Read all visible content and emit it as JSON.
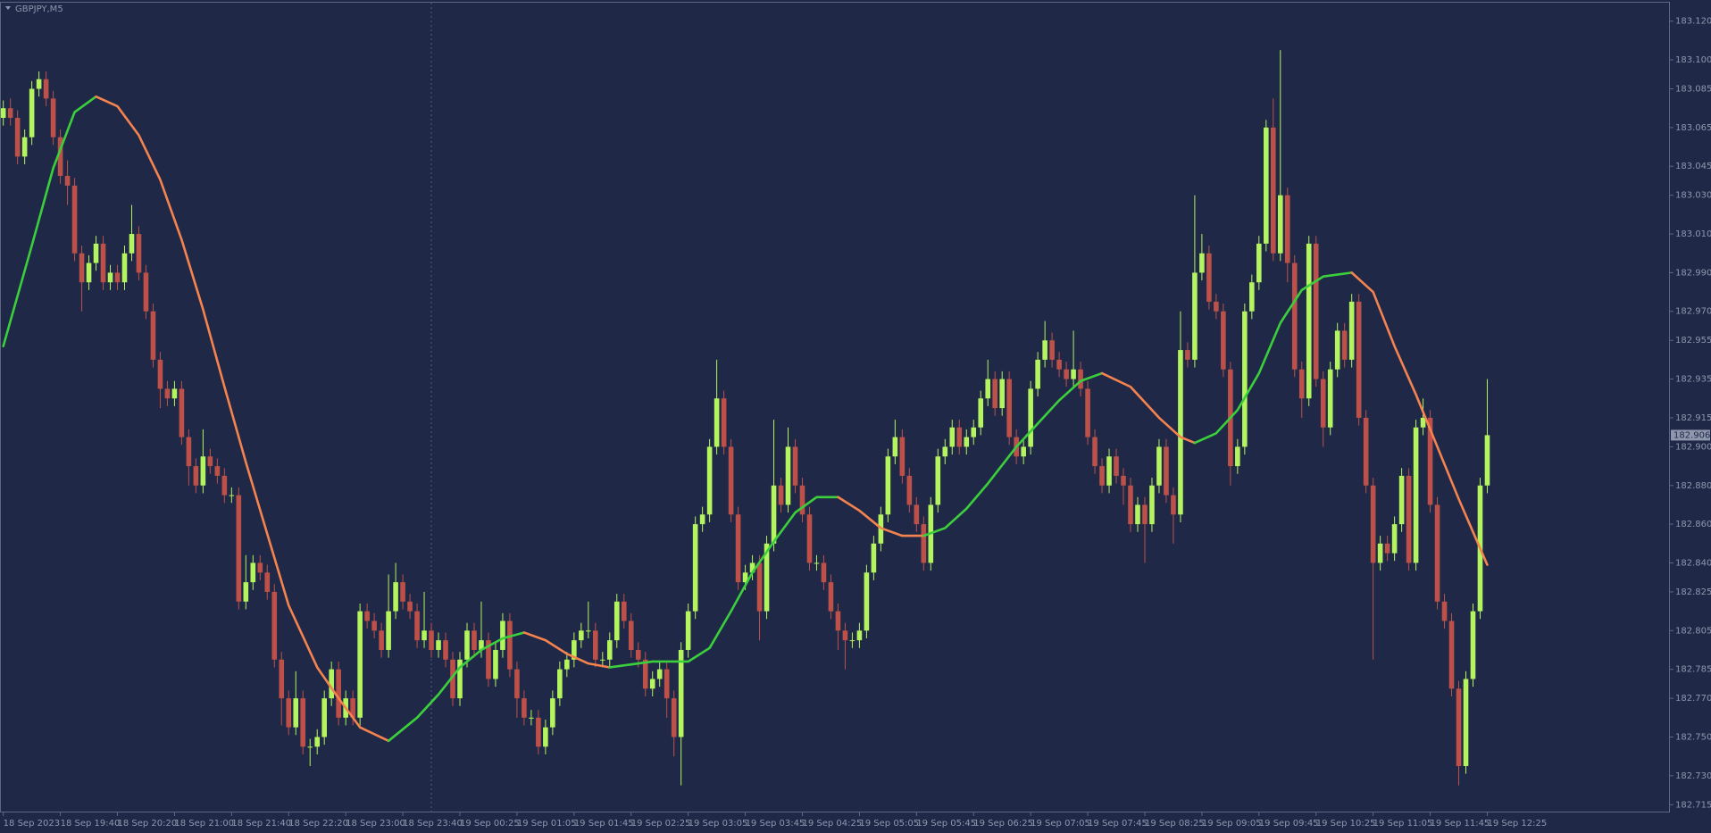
{
  "chart_data": {
    "type": "candlestick",
    "title": "GBPJPY,M5",
    "categories": [
      "18 Sep 2023",
      null,
      null,
      null,
      null,
      null,
      null,
      null,
      "18 Sep 19:40",
      null,
      null,
      null,
      null,
      null,
      null,
      null,
      "18 Sep 20:20",
      null,
      null,
      null,
      null,
      null,
      null,
      null,
      "18 Sep 21:00",
      null,
      null,
      null,
      null,
      null,
      null,
      null,
      "18 Sep 21:40",
      null,
      null,
      null,
      null,
      null,
      null,
      null,
      "18 Sep 22:20",
      null,
      null,
      null,
      null,
      null,
      null,
      null,
      "18 Sep 23:00",
      null,
      null,
      null,
      null,
      null,
      null,
      null,
      "18 Sep 23:40",
      null,
      null,
      null,
      null,
      null,
      null,
      null,
      "19 Sep 00:25",
      null,
      null,
      null,
      null,
      null,
      null,
      null,
      "19 Sep 01:05",
      null,
      null,
      null,
      null,
      null,
      null,
      null,
      "19 Sep 01:45",
      null,
      null,
      null,
      null,
      null,
      null,
      null,
      "19 Sep 02:25",
      null,
      null,
      null,
      null,
      null,
      null,
      null,
      "19 Sep 03:05",
      null,
      null,
      null,
      null,
      null,
      null,
      null,
      "19 Sep 03:45",
      null,
      null,
      null,
      null,
      null,
      null,
      null,
      "19 Sep 04:25",
      null,
      null,
      null,
      null,
      null,
      null,
      null,
      "19 Sep 05:05",
      null,
      null,
      null,
      null,
      null,
      null,
      null,
      "19 Sep 05:45",
      null,
      null,
      null,
      null,
      null,
      null,
      null,
      "19 Sep 06:25",
      null,
      null,
      null,
      null,
      null,
      null,
      null,
      "19 Sep 07:05",
      null,
      null,
      null,
      null,
      null,
      null,
      null,
      "19 Sep 07:45",
      null,
      null,
      null,
      null,
      null,
      null,
      null,
      "19 Sep 08:25",
      null,
      null,
      null,
      null,
      null,
      null,
      null,
      "19 Sep 09:05",
      null,
      null,
      null,
      null,
      null,
      null,
      null,
      "19 Sep 09:45",
      null,
      null,
      null,
      null,
      null,
      null,
      null,
      "19 Sep 10:25",
      null,
      null,
      null,
      null,
      null,
      null,
      null,
      "19 Sep 11:05",
      null,
      null,
      null,
      null,
      null,
      null,
      null,
      "19 Sep 11:45",
      null,
      null,
      null,
      null,
      null,
      null,
      null,
      "19 Sep 12:25"
    ],
    "open": [
      183.07,
      183.075,
      183.07,
      183.05,
      183.06,
      183.085,
      183.09,
      183.08,
      183.06,
      183.04,
      183.035,
      183.0,
      182.985,
      182.995,
      183.005,
      182.985,
      182.99,
      182.985,
      183.0,
      183.01,
      182.99,
      182.97,
      182.945,
      182.93,
      182.925,
      182.93,
      182.905,
      182.89,
      182.88,
      182.895,
      182.89,
      182.885,
      182.875,
      182.875,
      182.82,
      182.83,
      182.84,
      182.835,
      182.825,
      182.79,
      182.77,
      182.755,
      182.77,
      182.745,
      182.745,
      182.75,
      182.77,
      182.785,
      182.76,
      182.77,
      182.76,
      182.815,
      182.81,
      182.805,
      182.795,
      182.815,
      182.83,
      182.82,
      182.815,
      182.8,
      182.805,
      182.795,
      182.8,
      182.79,
      182.77,
      182.79,
      182.805,
      182.795,
      182.8,
      182.78,
      182.795,
      182.81,
      182.785,
      182.77,
      182.76,
      182.76,
      182.745,
      182.755,
      182.77,
      182.785,
      182.79,
      182.8,
      182.805,
      182.805,
      182.79,
      182.79,
      182.8,
      182.82,
      182.81,
      182.795,
      182.79,
      182.775,
      182.78,
      182.785,
      182.77,
      182.75,
      182.795,
      182.815,
      182.86,
      182.865,
      182.9,
      182.925,
      182.9,
      182.865,
      182.83,
      182.835,
      182.84,
      182.815,
      182.85,
      182.88,
      182.87,
      182.9,
      182.88,
      182.865,
      182.84,
      182.84,
      182.83,
      182.815,
      182.805,
      182.8,
      182.8,
      182.805,
      182.835,
      182.85,
      182.865,
      182.895,
      182.905,
      182.885,
      182.87,
      182.86,
      182.84,
      182.87,
      182.895,
      182.9,
      182.91,
      182.9,
      182.905,
      182.91,
      182.925,
      182.935,
      182.92,
      182.935,
      182.905,
      182.895,
      182.9,
      182.93,
      182.945,
      182.955,
      182.945,
      182.94,
      182.935,
      182.94,
      182.93,
      182.905,
      182.89,
      182.88,
      182.895,
      182.885,
      182.88,
      182.86,
      182.87,
      182.86,
      182.88,
      182.9,
      182.875,
      182.865,
      182.95,
      182.945,
      182.99,
      183.0,
      182.975,
      182.97,
      182.94,
      182.89,
      182.9,
      182.97,
      182.985,
      183.005,
      183.065,
      183.0,
      183.03,
      182.995,
      182.94,
      182.925,
      183.005,
      182.935,
      182.91,
      182.94,
      182.96,
      182.945,
      182.975,
      182.915,
      182.88,
      182.84,
      182.85,
      182.845,
      182.86,
      182.885,
      182.84,
      182.91,
      182.915,
      182.87,
      182.82,
      182.81,
      182.775,
      182.735,
      182.78,
      182.815,
      182.88
    ],
    "high": [
      183.079,
      183.08,
      183.074,
      183.064,
      183.089,
      183.094,
      183.094,
      183.084,
      183.064,
      183.048,
      183.039,
      183.004,
      182.999,
      183.009,
      183.009,
      182.994,
      182.994,
      183.004,
      183.025,
      183.014,
      182.994,
      182.974,
      182.949,
      182.934,
      182.934,
      182.934,
      182.909,
      182.894,
      182.909,
      182.899,
      182.894,
      182.889,
      182.879,
      182.879,
      182.844,
      182.844,
      182.844,
      182.839,
      182.829,
      182.794,
      182.774,
      182.784,
      182.774,
      182.749,
      182.754,
      182.774,
      182.789,
      182.789,
      182.774,
      182.774,
      182.819,
      182.819,
      182.814,
      182.809,
      182.834,
      182.84,
      182.834,
      182.824,
      182.819,
      182.825,
      182.809,
      182.804,
      182.804,
      182.794,
      182.794,
      182.809,
      182.809,
      182.82,
      182.804,
      182.799,
      182.814,
      182.814,
      182.789,
      182.774,
      182.764,
      182.764,
      182.759,
      182.774,
      182.789,
      182.794,
      182.804,
      182.809,
      182.82,
      182.809,
      182.794,
      182.804,
      182.824,
      182.824,
      182.814,
      182.799,
      182.794,
      182.784,
      182.789,
      182.789,
      182.774,
      182.799,
      182.819,
      182.864,
      182.869,
      182.904,
      182.945,
      182.929,
      182.904,
      182.869,
      182.839,
      182.844,
      182.844,
      182.854,
      182.914,
      182.884,
      182.91,
      182.904,
      182.884,
      182.869,
      182.844,
      182.844,
      182.834,
      182.819,
      182.809,
      182.804,
      182.809,
      182.839,
      182.854,
      182.869,
      182.899,
      182.914,
      182.909,
      182.889,
      182.874,
      182.864,
      182.874,
      182.899,
      182.904,
      182.914,
      182.914,
      182.909,
      182.914,
      182.929,
      182.945,
      182.939,
      182.939,
      182.939,
      182.909,
      182.904,
      182.934,
      182.949,
      182.965,
      182.959,
      182.949,
      182.944,
      182.96,
      182.944,
      182.934,
      182.909,
      182.894,
      182.899,
      182.899,
      182.889,
      182.884,
      182.874,
      182.874,
      182.884,
      182.904,
      182.904,
      182.879,
      182.97,
      182.954,
      183.03,
      183.01,
      183.004,
      182.979,
      182.974,
      182.944,
      182.904,
      182.974,
      182.989,
      183.009,
      183.069,
      183.08,
      183.105,
      183.034,
      182.999,
      182.944,
      183.009,
      183.009,
      182.939,
      182.944,
      182.964,
      182.964,
      182.979,
      182.979,
      182.919,
      182.884,
      182.854,
      182.854,
      182.864,
      182.889,
      182.889,
      182.914,
      182.925,
      182.919,
      182.874,
      182.824,
      182.814,
      182.779,
      182.784,
      182.819,
      182.884,
      182.935
    ],
    "low": [
      183.066,
      183.066,
      183.046,
      183.046,
      183.056,
      183.081,
      183.076,
      183.056,
      183.036,
      183.025,
      182.996,
      182.97,
      182.981,
      182.991,
      182.981,
      182.981,
      182.981,
      182.981,
      182.996,
      182.986,
      182.966,
      182.941,
      182.92,
      182.921,
      182.921,
      182.901,
      182.88,
      182.876,
      182.876,
      182.886,
      182.881,
      182.871,
      182.871,
      182.816,
      182.816,
      182.826,
      182.831,
      182.821,
      182.786,
      182.756,
      182.751,
      182.751,
      182.741,
      182.735,
      182.741,
      182.746,
      182.766,
      182.756,
      182.756,
      182.756,
      182.756,
      182.806,
      182.801,
      182.791,
      182.791,
      182.811,
      182.816,
      182.811,
      182.796,
      182.796,
      182.791,
      182.791,
      182.786,
      182.766,
      182.766,
      182.786,
      182.791,
      182.791,
      182.776,
      182.776,
      182.791,
      182.781,
      182.76,
      182.756,
      182.756,
      182.741,
      182.741,
      182.751,
      182.766,
      182.781,
      182.786,
      182.796,
      182.801,
      182.786,
      182.786,
      182.786,
      182.796,
      182.806,
      182.791,
      182.786,
      182.771,
      182.771,
      182.776,
      182.76,
      182.74,
      182.725,
      182.791,
      182.811,
      182.856,
      182.861,
      182.896,
      182.896,
      182.861,
      182.826,
      182.826,
      182.831,
      182.8,
      182.811,
      182.846,
      182.866,
      182.866,
      182.876,
      182.861,
      182.836,
      182.836,
      182.826,
      182.811,
      182.795,
      182.785,
      182.796,
      182.796,
      182.801,
      182.831,
      182.846,
      182.861,
      182.891,
      182.881,
      182.866,
      182.856,
      182.836,
      182.836,
      182.866,
      182.891,
      182.896,
      182.896,
      182.896,
      182.901,
      182.906,
      182.921,
      182.916,
      182.916,
      182.901,
      182.891,
      182.891,
      182.896,
      182.926,
      182.941,
      182.941,
      182.936,
      182.931,
      182.931,
      182.926,
      182.901,
      182.886,
      182.876,
      182.876,
      182.881,
      182.87,
      182.856,
      182.856,
      182.84,
      182.856,
      182.876,
      182.871,
      182.85,
      182.861,
      182.941,
      182.941,
      182.986,
      182.971,
      182.966,
      182.936,
      182.88,
      182.886,
      182.896,
      182.966,
      182.981,
      183.001,
      182.996,
      182.996,
      182.985,
      182.936,
      182.915,
      182.921,
      182.931,
      182.9,
      182.906,
      182.936,
      182.941,
      182.941,
      182.911,
      182.876,
      182.79,
      182.836,
      182.841,
      182.841,
      182.856,
      182.836,
      182.836,
      182.906,
      182.866,
      182.816,
      182.806,
      182.771,
      182.725,
      182.731,
      182.776,
      182.811,
      182.876
    ],
    "close": [
      183.075,
      183.07,
      183.05,
      183.06,
      183.085,
      183.09,
      183.08,
      183.06,
      183.04,
      183.035,
      183.0,
      182.985,
      182.995,
      183.005,
      182.985,
      182.99,
      182.985,
      183.0,
      183.01,
      182.99,
      182.97,
      182.945,
      182.93,
      182.925,
      182.93,
      182.905,
      182.89,
      182.88,
      182.895,
      182.89,
      182.885,
      182.875,
      182.875,
      182.82,
      182.83,
      182.84,
      182.835,
      182.825,
      182.79,
      182.77,
      182.755,
      182.77,
      182.745,
      182.745,
      182.75,
      182.77,
      182.785,
      182.76,
      182.77,
      182.76,
      182.815,
      182.81,
      182.805,
      182.795,
      182.815,
      182.83,
      182.82,
      182.815,
      182.8,
      182.805,
      182.795,
      182.8,
      182.79,
      182.77,
      182.79,
      182.805,
      182.795,
      182.8,
      182.78,
      182.795,
      182.81,
      182.785,
      182.77,
      182.76,
      182.76,
      182.745,
      182.755,
      182.77,
      182.785,
      182.79,
      182.8,
      182.805,
      182.805,
      182.79,
      182.79,
      182.8,
      182.82,
      182.81,
      182.795,
      182.79,
      182.775,
      182.78,
      182.785,
      182.77,
      182.75,
      182.795,
      182.815,
      182.86,
      182.865,
      182.9,
      182.925,
      182.9,
      182.865,
      182.83,
      182.835,
      182.84,
      182.815,
      182.85,
      182.88,
      182.87,
      182.9,
      182.88,
      182.865,
      182.84,
      182.84,
      182.83,
      182.815,
      182.805,
      182.8,
      182.8,
      182.805,
      182.835,
      182.85,
      182.865,
      182.895,
      182.905,
      182.885,
      182.87,
      182.86,
      182.84,
      182.87,
      182.895,
      182.9,
      182.91,
      182.9,
      182.905,
      182.91,
      182.925,
      182.935,
      182.92,
      182.935,
      182.905,
      182.895,
      182.9,
      182.93,
      182.945,
      182.955,
      182.945,
      182.94,
      182.935,
      182.94,
      182.93,
      182.905,
      182.89,
      182.88,
      182.895,
      182.885,
      182.88,
      182.86,
      182.87,
      182.86,
      182.88,
      182.9,
      182.875,
      182.865,
      182.95,
      182.945,
      182.99,
      183.0,
      182.975,
      182.97,
      182.94,
      182.89,
      182.9,
      182.97,
      182.985,
      183.005,
      183.065,
      183.0,
      183.03,
      182.995,
      182.94,
      182.925,
      183.005,
      182.935,
      182.91,
      182.94,
      182.96,
      182.945,
      182.975,
      182.915,
      182.88,
      182.84,
      182.85,
      182.845,
      182.86,
      182.885,
      182.84,
      182.91,
      182.915,
      182.87,
      182.82,
      182.81,
      182.775,
      182.735,
      182.78,
      182.815,
      182.88,
      182.906
    ],
    "up_color": "#b3f45f",
    "down_color": "#bd5149",
    "moving_average": {
      "x": [
        0,
        4,
        7,
        10,
        13,
        16,
        19,
        22,
        25,
        28,
        31,
        34,
        37,
        40,
        44,
        47,
        50,
        54,
        58,
        61,
        64,
        67,
        70,
        73,
        76,
        79,
        82,
        85,
        91,
        96,
        99,
        102,
        105,
        108,
        111,
        114,
        117,
        120,
        123,
        126,
        129,
        132,
        135,
        138,
        142,
        145,
        148,
        151,
        154,
        158,
        162,
        165,
        167,
        170,
        173,
        176,
        179,
        182,
        185,
        189,
        192,
        195,
        198,
        201,
        204,
        208
      ],
      "values": [
        182.952,
        183.004,
        183.044,
        183.073,
        183.081,
        183.076,
        183.061,
        183.038,
        183.007,
        182.971,
        182.931,
        182.892,
        182.855,
        182.818,
        182.786,
        182.77,
        182.755,
        182.748,
        182.76,
        182.772,
        182.786,
        182.795,
        182.801,
        182.804,
        182.8,
        182.793,
        182.788,
        182.786,
        182.789,
        182.789,
        182.796,
        182.815,
        182.835,
        182.851,
        182.866,
        182.874,
        182.874,
        182.867,
        182.858,
        182.854,
        182.854,
        182.858,
        182.868,
        182.881,
        182.9,
        182.912,
        182.924,
        182.934,
        182.938,
        182.931,
        182.915,
        182.905,
        182.902,
        182.907,
        182.919,
        182.938,
        182.964,
        182.981,
        182.988,
        182.99,
        182.98,
        182.952,
        182.927,
        182.9,
        182.873,
        182.839
      ],
      "rising_color": "#3ccf3c",
      "falling_color": "#f5834f"
    },
    "last_price": 182.906,
    "xlim": [
      -0.46,
      233.6
    ],
    "ylim": [
      182.711,
      183.13
    ],
    "yticks": [
      {
        "value": 183.12,
        "label": "183.120"
      },
      {
        "value": 183.1,
        "label": "183.100"
      },
      183.085,
      183.065,
      183.045,
      {
        "value": 183.03,
        "label": "183.030"
      },
      {
        "value": 183.01,
        "label": "183.010"
      },
      {
        "value": 182.99,
        "label": "182.990"
      },
      {
        "value": 182.97,
        "label": "182.970"
      },
      182.955,
      182.935,
      182.915,
      {
        "value": 182.9,
        "label": "182.900"
      },
      {
        "value": 182.88,
        "label": "182.880"
      },
      {
        "value": 182.86,
        "label": "182.860"
      },
      {
        "value": 182.84,
        "label": "182.840"
      },
      182.825,
      182.805,
      182.785,
      {
        "value": 182.77,
        "label": "182.770"
      },
      {
        "value": 182.75,
        "label": "182.750"
      },
      {
        "value": 182.73,
        "label": "182.730"
      },
      182.715
    ],
    "grid": false
  }
}
